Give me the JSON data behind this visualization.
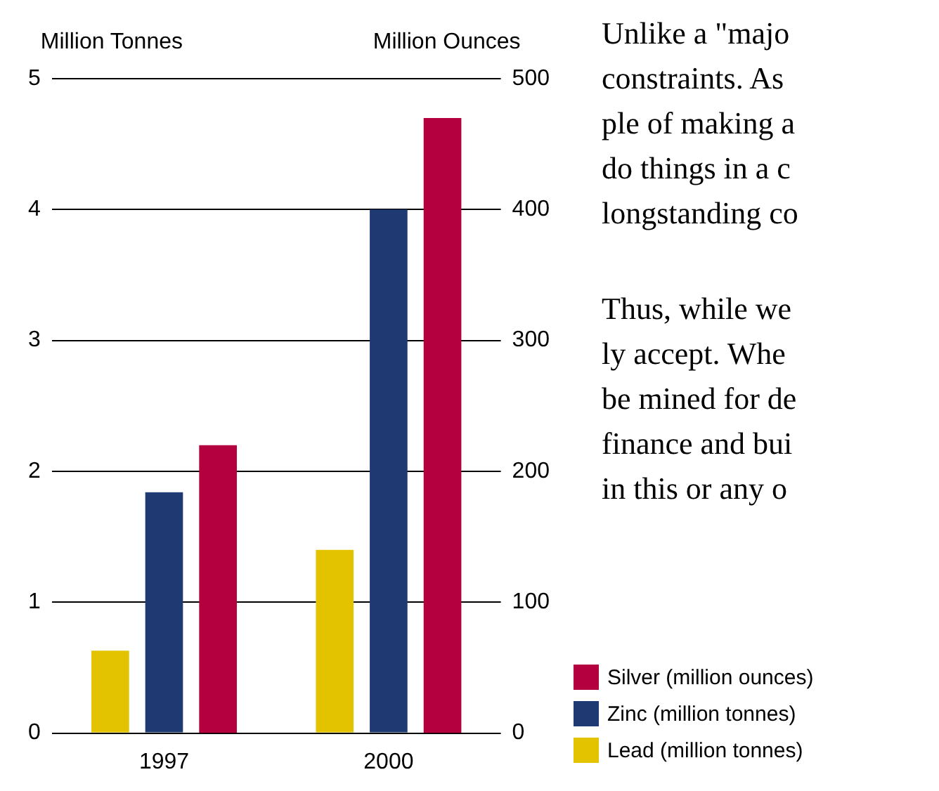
{
  "chart_data": {
    "type": "bar",
    "ylabel": "Million Tonnes",
    "y2label": "Million Ounces",
    "categories": [
      "1997",
      "2000"
    ],
    "series": [
      {
        "name": "Lead (million tonnes)",
        "color": "#e3c300",
        "values": [
          0.63,
          1.4
        ]
      },
      {
        "name": "Zinc (million tonnes)",
        "color": "#1f3a73",
        "values": [
          1.84,
          4.0
        ]
      },
      {
        "name": "Silver (million ounces)",
        "color": "#b5003f",
        "values": [
          220,
          470
        ],
        "axis": "y2"
      }
    ],
    "ylim": [
      0,
      5
    ],
    "yticks": [
      0,
      1,
      2,
      3,
      4,
      5
    ],
    "y2lim": [
      0,
      500
    ],
    "y2ticks": [
      0,
      100,
      200,
      300,
      400,
      500
    ],
    "grid": "y",
    "legend": "bottom right",
    "annotations": [
      "Unlike a \"majo",
      "constraints.  As",
      "ple of making a",
      "do things in a c",
      "longstanding co",
      "Thus, while we",
      "ly accept.  Whe",
      "be mined for de",
      "finance and bui",
      "in this or any o"
    ]
  }
}
